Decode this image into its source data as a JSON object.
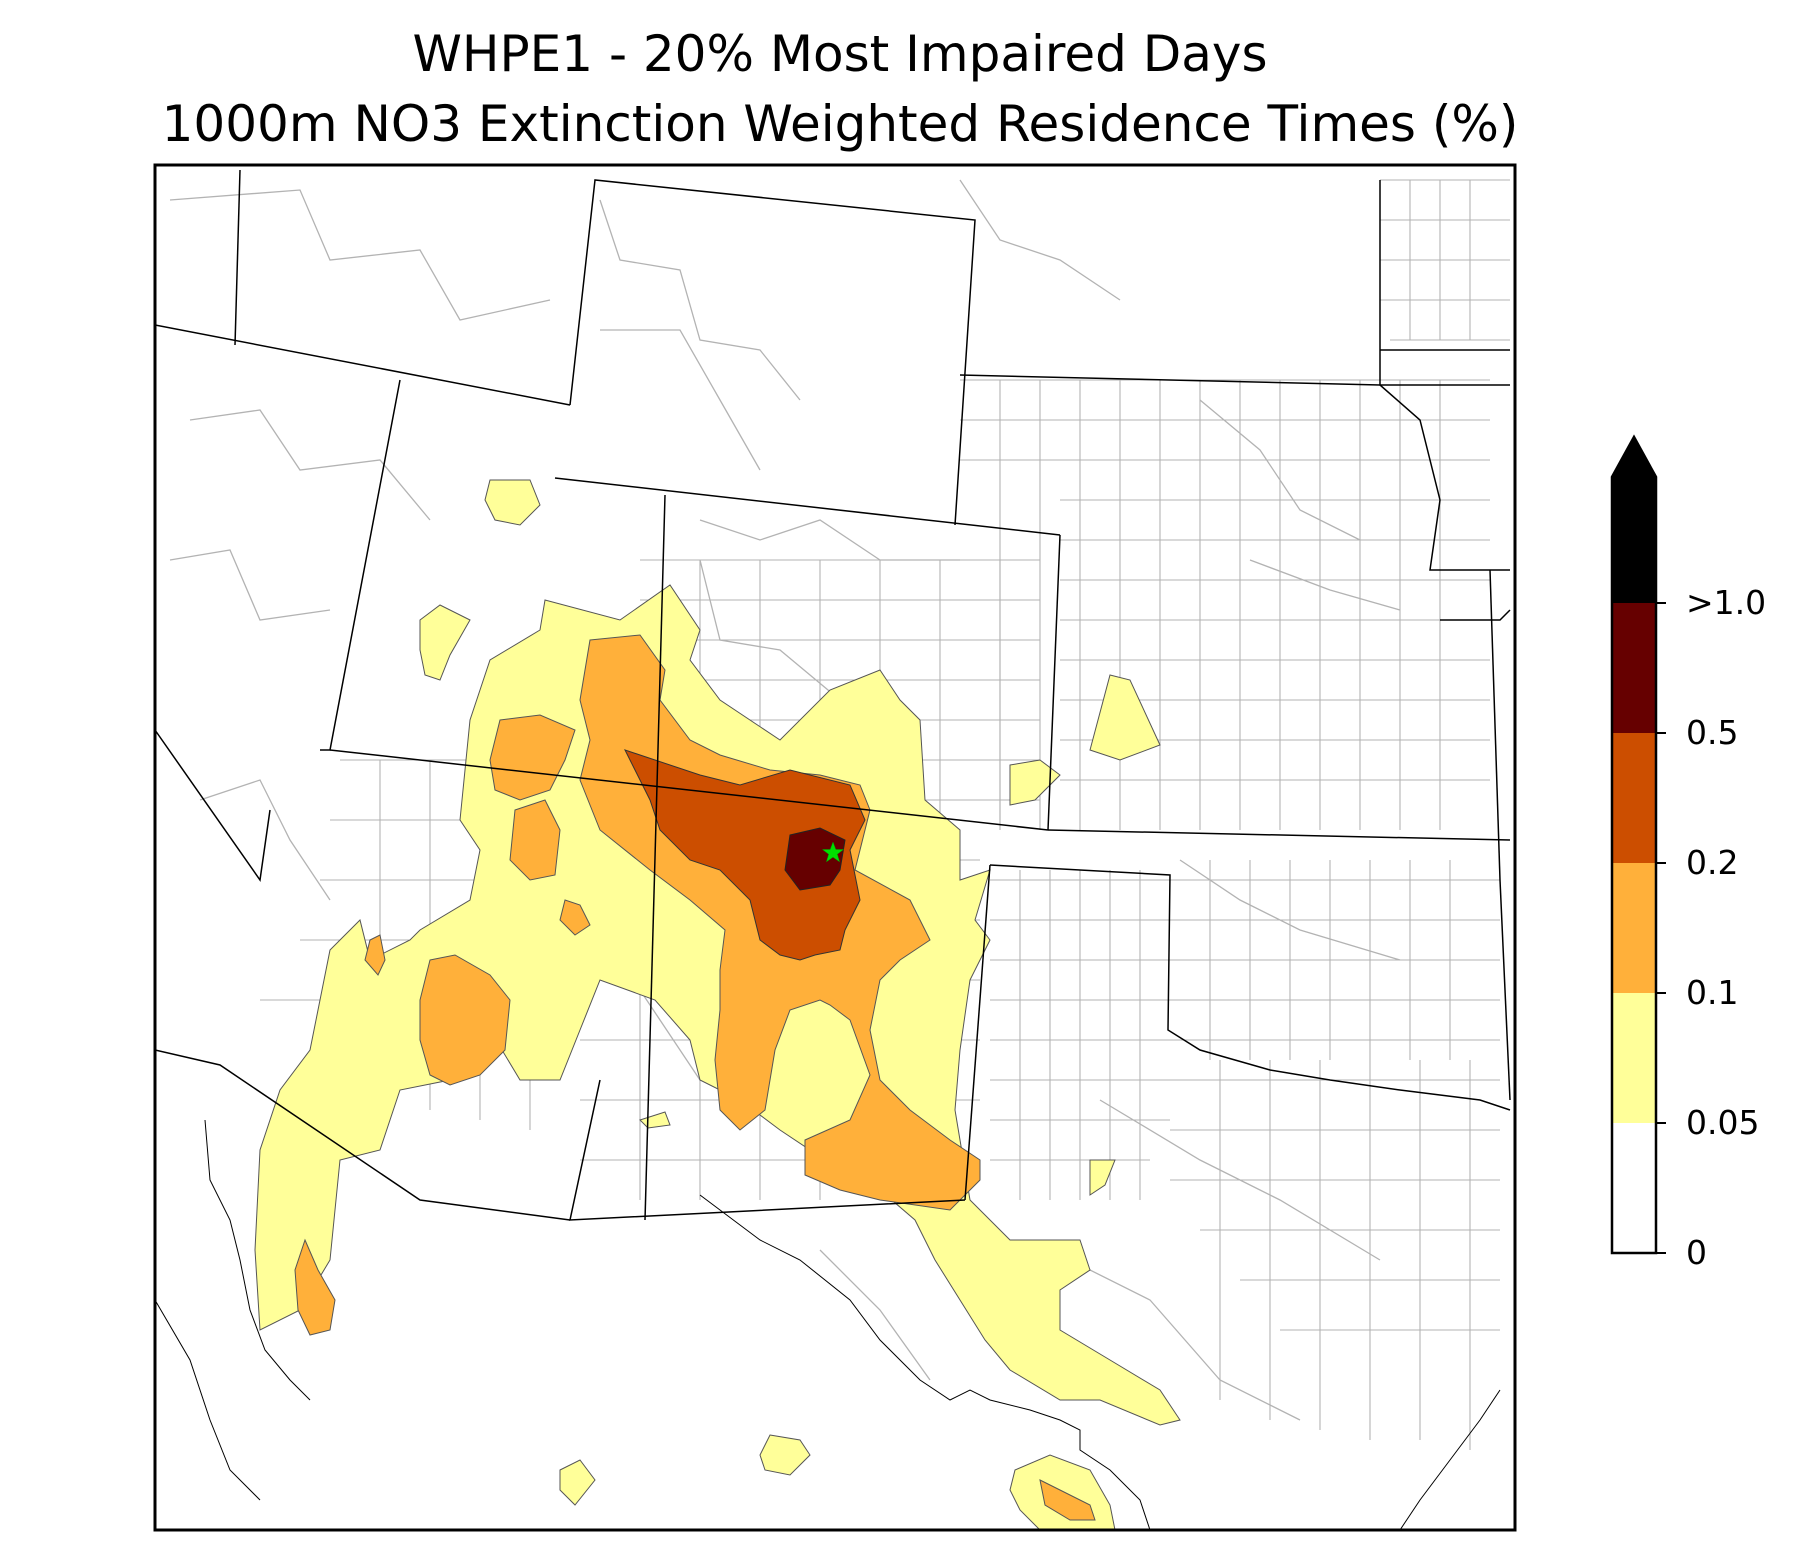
{
  "title": {
    "line1": "WHPE1 - 20% Most Impaired Days",
    "line2": "1000m NO3 Extinction Weighted Residence Times (%)"
  },
  "colorbar": {
    "extend": "max",
    "levels": [
      {
        "label": "0",
        "value": 0,
        "color": "#ffffff"
      },
      {
        "label": "0.05",
        "value": 0.05,
        "color": "#ffff99"
      },
      {
        "label": "0.1",
        "value": 0.1,
        "color": "#ffb03a"
      },
      {
        "label": "0.2",
        "value": 0.2,
        "color": "#cc4e00"
      },
      {
        "label": "0.5",
        "value": 0.5,
        "color": "#660000"
      },
      {
        "label": ">1.0",
        "value": 1.0,
        "color": "#000000"
      }
    ]
  },
  "map": {
    "site_marker": {
      "label": "WHPE1",
      "symbol": "star",
      "color": "#00e000"
    },
    "boundary_colors": {
      "state": "#000000",
      "county": "#aaaaaa",
      "coast": "#000000"
    }
  }
}
